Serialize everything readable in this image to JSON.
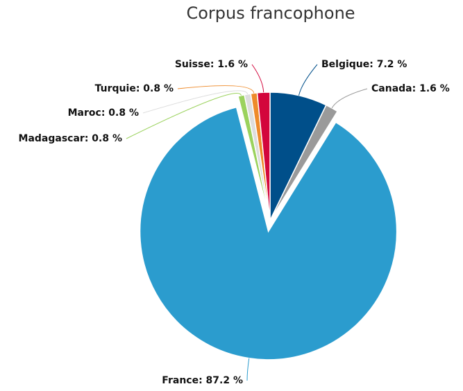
{
  "chart_data": {
    "type": "pie",
    "title": "Corpus francophone",
    "values": [
      7.2,
      1.6,
      87.2,
      0.8,
      0.8,
      0.8,
      1.6
    ],
    "value_labels": [
      "Belgique: 7.2 %",
      "Canada: 1.6 %",
      "France: 87.2 %",
      "Madagascar: 0.8 %",
      "Maroc: 0.8 %",
      "Turquie: 0.8 %",
      "Suisse: 1.6 %"
    ],
    "colors": [
      "#004f8a",
      "#9a9a9a",
      "#2b9cce",
      "#9bd25d",
      "#dddddd",
      "#ee8a2a",
      "#d3063c"
    ]
  }
}
